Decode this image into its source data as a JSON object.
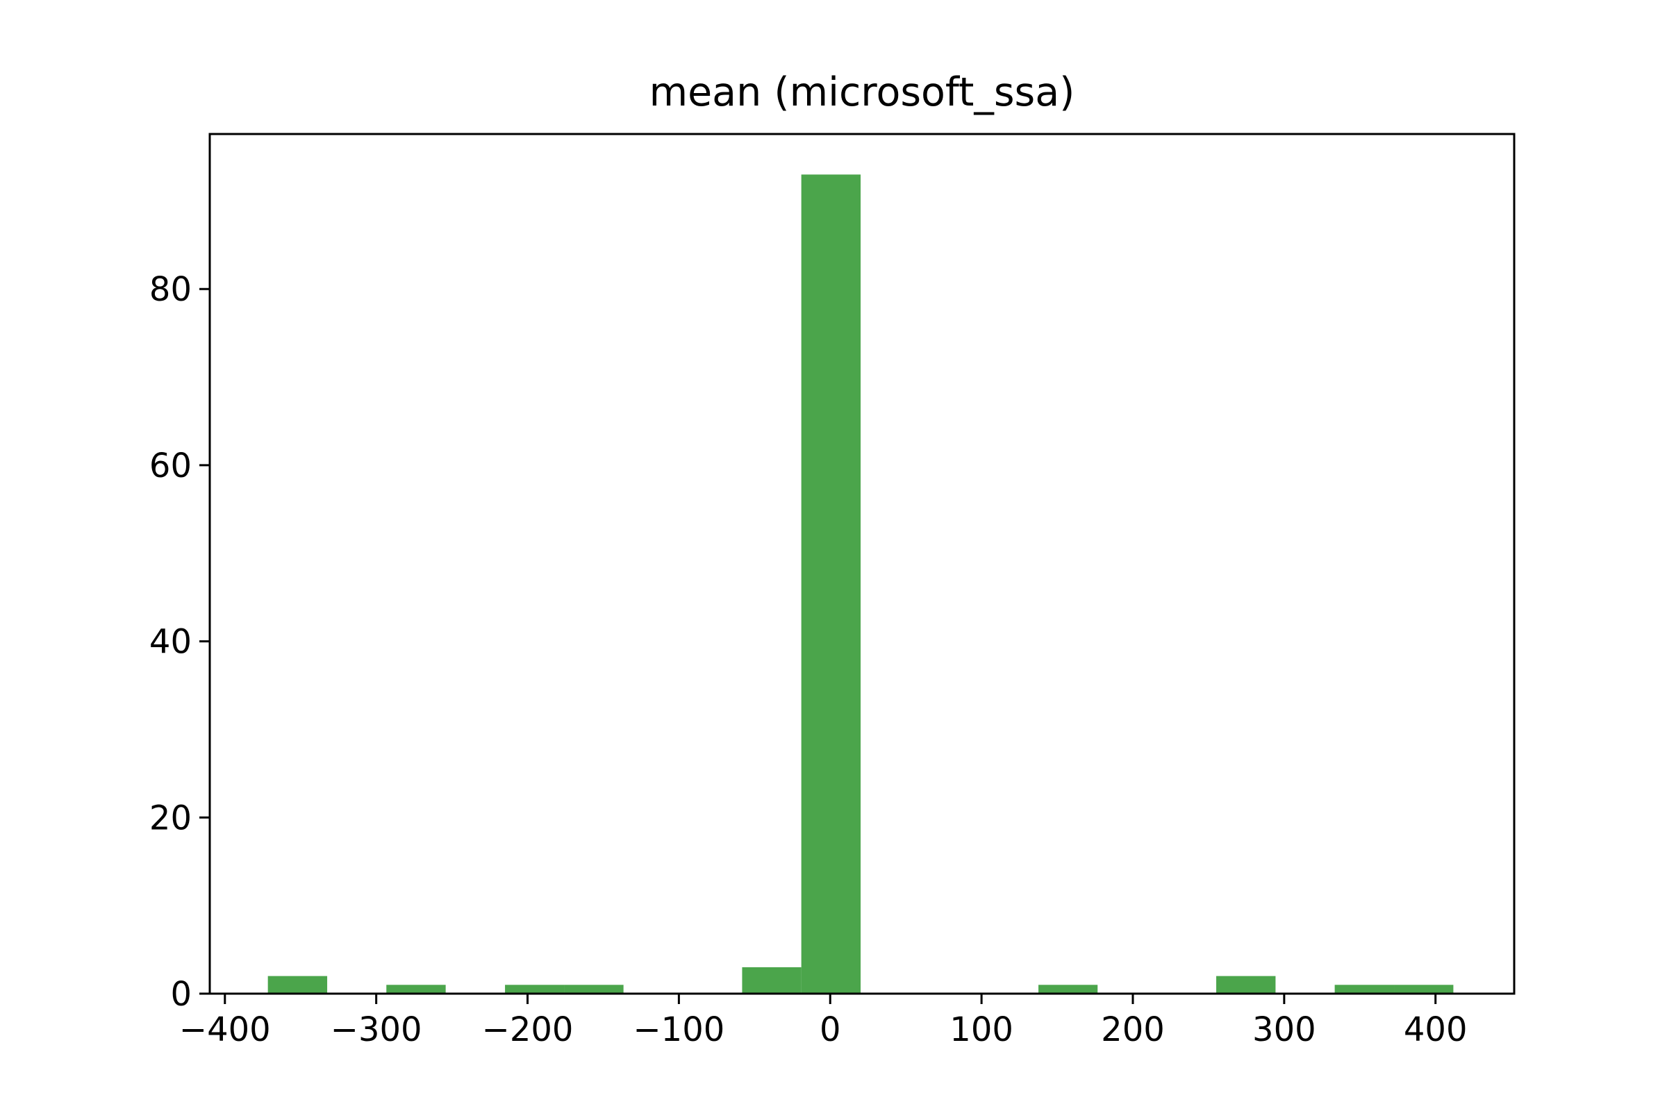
{
  "chart_data": {
    "type": "bar",
    "title": "mean (microsoft_ssa)",
    "xlabel": "",
    "ylabel": "",
    "xlim": [
      -410,
      452
    ],
    "ylim": [
      0,
      97.6
    ],
    "x_ticks": [
      -400,
      -300,
      -200,
      -100,
      0,
      100,
      200,
      300,
      400
    ],
    "x_tick_labels": [
      "−400",
      "−300",
      "−200",
      "−100",
      "0",
      "100",
      "200",
      "300",
      "400"
    ],
    "y_ticks": [
      0,
      20,
      40,
      60,
      80
    ],
    "y_tick_labels": [
      "0",
      "20",
      "40",
      "60",
      "80"
    ],
    "grid": false,
    "legend": "none",
    "bar_color": "#4ba54b",
    "bins": [
      {
        "x0": -371.6,
        "x1": -332.4,
        "count": 2
      },
      {
        "x0": -293.3,
        "x1": -254.1,
        "count": 1
      },
      {
        "x0": -214.9,
        "x1": -175.7,
        "count": 1
      },
      {
        "x0": -175.7,
        "x1": -136.6,
        "count": 1
      },
      {
        "x0": -58.2,
        "x1": -19.1,
        "count": 3
      },
      {
        "x0": -19.1,
        "x1": 20.1,
        "count": 93
      },
      {
        "x0": 137.6,
        "x1": 176.7,
        "count": 1
      },
      {
        "x0": 255.1,
        "x1": 294.3,
        "count": 2
      },
      {
        "x0": 333.4,
        "x1": 372.6,
        "count": 1
      },
      {
        "x0": 372.6,
        "x1": 411.8,
        "count": 1
      }
    ]
  }
}
